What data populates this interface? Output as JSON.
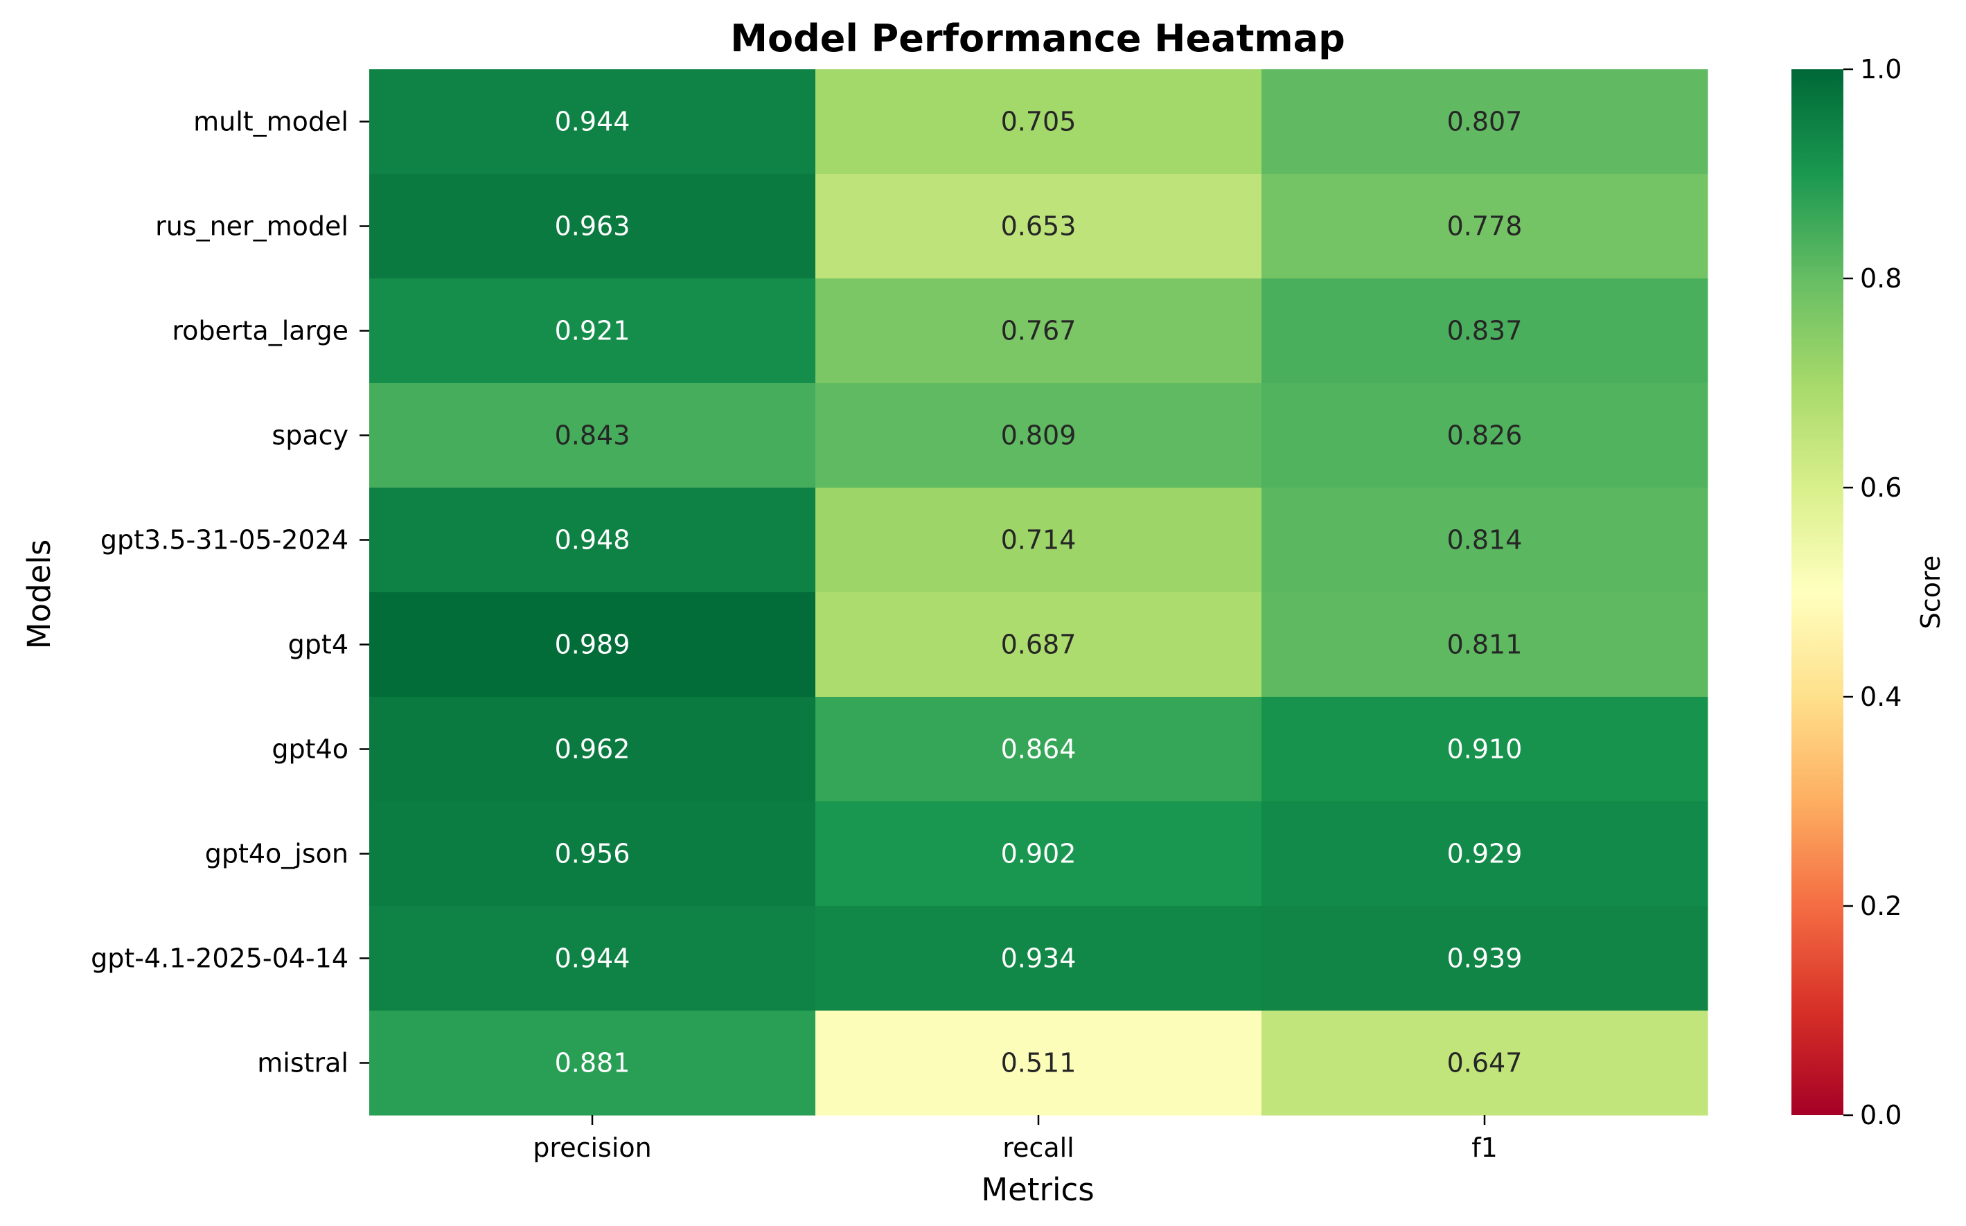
{
  "chart_data": {
    "type": "heatmap",
    "title": "Model Performance Heatmap",
    "xlabel": "Metrics",
    "ylabel": "Models",
    "columns": [
      "precision",
      "recall",
      "f1"
    ],
    "rows": [
      "mult_model",
      "rus_ner_model",
      "roberta_large",
      "spacy",
      "gpt3.5-31-05-2024",
      "gpt4",
      "gpt4o",
      "gpt4o_json",
      "gpt-4.1-2025-04-14",
      "mistral"
    ],
    "values": [
      [
        0.944,
        0.705,
        0.807
      ],
      [
        0.963,
        0.653,
        0.778
      ],
      [
        0.921,
        0.767,
        0.837
      ],
      [
        0.843,
        0.809,
        0.826
      ],
      [
        0.948,
        0.714,
        0.814
      ],
      [
        0.989,
        0.687,
        0.811
      ],
      [
        0.962,
        0.864,
        0.91
      ],
      [
        0.956,
        0.902,
        0.929
      ],
      [
        0.944,
        0.934,
        0.939
      ],
      [
        0.881,
        0.511,
        0.647
      ]
    ],
    "value_format": "0.000",
    "colormap": "RdYlGn",
    "colorbar": {
      "label": "Score",
      "range": [
        0,
        1
      ],
      "ticks": [
        "0.0",
        "0.2",
        "0.4",
        "0.6",
        "0.8",
        "1.0"
      ]
    },
    "grid": false
  }
}
